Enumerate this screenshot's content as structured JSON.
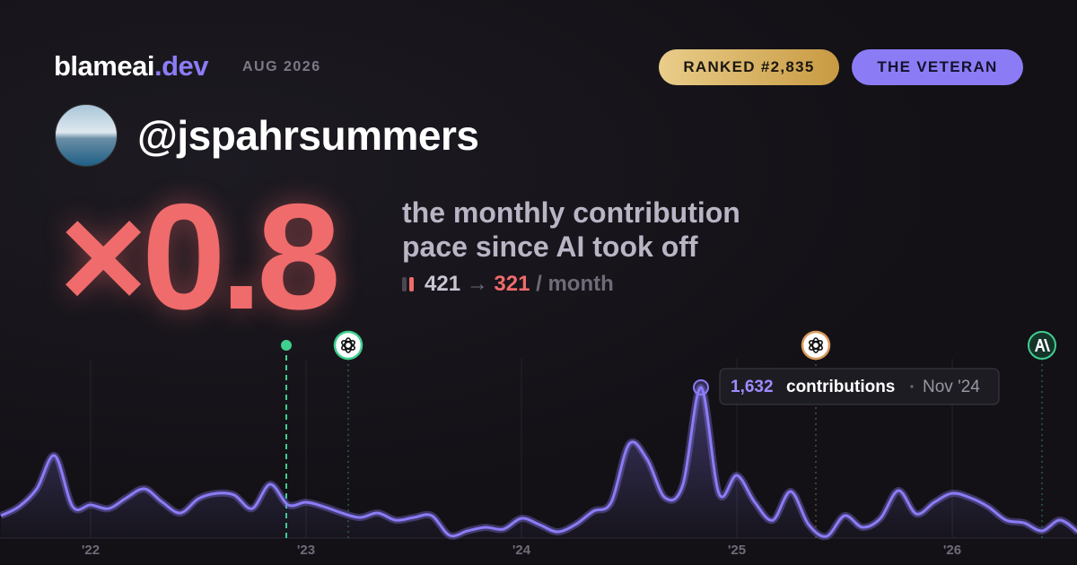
{
  "header": {
    "brand": "blameai",
    "brand_suffix": ".dev",
    "date": "AUG 2026",
    "rank_badge": "RANKED #2,835",
    "title_badge": "THE VETERAN"
  },
  "profile": {
    "handle": "@jspahrsummers"
  },
  "stat": {
    "multiplier": "×0.8",
    "description": "the monthly contribution pace since AI took off",
    "before": "421",
    "arrow": "→",
    "after": "321",
    "unit": "/ month"
  },
  "chart_data": {
    "type": "line",
    "categories": [
      null,
      null,
      null,
      null,
      null,
      "'22",
      null,
      null,
      null,
      null,
      null,
      null,
      null,
      null,
      null,
      null,
      null,
      "'23",
      null,
      null,
      null,
      null,
      null,
      null,
      null,
      null,
      null,
      null,
      null,
      "'24",
      null,
      null,
      null,
      null,
      null,
      null,
      null,
      null,
      null,
      null,
      null,
      "'25",
      null,
      null,
      null,
      null,
      null,
      null,
      null,
      null,
      null,
      null,
      null,
      "'26",
      null,
      null,
      null,
      null,
      null,
      null,
      null
    ],
    "values": [
      243,
      340,
      534,
      893,
      340,
      360,
      320,
      437,
      534,
      388,
      272,
      427,
      485,
      466,
      320,
      583,
      360,
      388,
      340,
      272,
      223,
      272,
      194,
      223,
      243,
      29,
      78,
      117,
      97,
      214,
      146,
      68,
      146,
      291,
      388,
      1020,
      854,
      437,
      583,
      1632,
      485,
      680,
      388,
      194,
      505,
      146,
      19,
      243,
      117,
      214,
      515,
      262,
      388,
      485,
      437,
      340,
      194,
      165,
      78,
      194,
      68
    ],
    "value_labels": [
      null,
      null,
      null,
      null,
      null,
      null,
      null,
      null,
      null,
      null,
      null,
      null,
      null,
      null,
      null,
      null,
      null,
      null,
      null,
      null,
      null,
      null,
      null,
      null,
      null,
      null,
      null,
      null,
      null,
      null,
      null,
      null,
      null,
      null,
      null,
      null,
      null,
      null,
      null,
      "1,632",
      null,
      null,
      null,
      null,
      null,
      null,
      null,
      null,
      null,
      null,
      null,
      null,
      null,
      null,
      null,
      null,
      null,
      null,
      null,
      null,
      null
    ],
    "color": "#8b7cf6",
    "ylim": [
      0,
      1700
    ],
    "tooltip": {
      "unit": "contributions",
      "date": "Nov '24"
    }
  }
}
